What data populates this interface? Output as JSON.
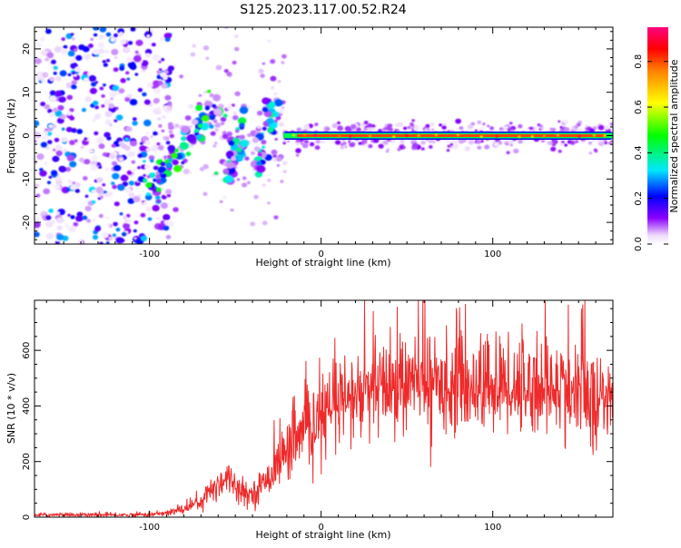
{
  "figure_title": "S125.2023.117.00.52.R24",
  "colors": {
    "snr_line": "#ee2a2a",
    "axis": "#000000",
    "background": "#ffffff"
  },
  "chart_data": [
    {
      "type": "heatmap",
      "title": "S125.2023.117.00.52.R24",
      "xlabel": "Height of straight line (km)",
      "ylabel": "Frequency (Hz)",
      "xlim": [
        -167,
        170
      ],
      "ylim": [
        -25,
        25
      ],
      "xticks": [
        -100,
        0,
        100
      ],
      "yticks": [
        -20,
        -10,
        0,
        10,
        20
      ],
      "grid": false,
      "colormap": "rainbow: white-lavender → violet → blue → cyan → green → yellow → orange → red → magenta",
      "colorbar": {
        "label": "Normalized spectral amplitude",
        "range": [
          0.0,
          0.95
        ],
        "ticks": [
          0.0,
          0.2,
          0.4,
          0.6,
          0.8
        ]
      },
      "features": [
        {
          "name": "noise",
          "x_range": [
            -167,
            -95
          ],
          "y_range": [
            -25,
            25
          ],
          "amplitude": [
            0.02,
            0.3
          ]
        },
        {
          "name": "tilted streak 1",
          "from": [
            -102,
            -13
          ],
          "to": [
            -60,
            7
          ],
          "amplitude_max": 0.45
        },
        {
          "name": "tilted streak 2",
          "from": [
            -56,
            -10
          ],
          "to": [
            -43,
            4
          ],
          "amplitude_max": 0.4
        },
        {
          "name": "tilted streak 3",
          "from": [
            -38,
            -8
          ],
          "to": [
            -28,
            8
          ],
          "amplitude_max": 0.35
        },
        {
          "name": "carrier line",
          "x_range": [
            -22,
            170
          ],
          "frequency": 0,
          "amplitude_max": 0.95
        }
      ]
    },
    {
      "type": "line",
      "xlabel": "Height of straight line (km)",
      "ylabel": "SNR (10 * v/v)",
      "xlim": [
        -167,
        170
      ],
      "ylim": [
        0,
        780
      ],
      "xticks": [
        -100,
        0,
        100
      ],
      "yticks": [
        0,
        200,
        400,
        600
      ],
      "grid": false,
      "series": [
        {
          "x": [
            -167,
            -140,
            -110,
            -100,
            -90,
            -80,
            -70,
            -60,
            -55,
            -50,
            -45,
            -40,
            -35,
            -30,
            -25,
            -20,
            -15,
            -10,
            -5,
            0,
            10,
            20,
            30,
            40,
            50,
            60,
            70,
            80,
            90,
            100,
            110,
            120,
            130,
            140,
            150,
            160,
            170
          ],
          "mean": [
            8,
            8,
            8,
            10,
            14,
            30,
            60,
            120,
            150,
            120,
            85,
            85,
            110,
            150,
            200,
            240,
            270,
            300,
            320,
            360,
            400,
            430,
            450,
            470,
            480,
            480,
            480,
            480,
            470,
            470,
            470,
            470,
            460,
            460,
            440,
            420,
            410
          ],
          "spread": [
            6,
            6,
            7,
            8,
            10,
            18,
            30,
            60,
            60,
            45,
            40,
            40,
            50,
            60,
            80,
            100,
            110,
            120,
            130,
            140,
            150,
            150,
            160,
            160,
            160,
            160,
            160,
            160,
            160,
            160,
            160,
            160,
            160,
            160,
            160,
            160,
            160
          ]
        }
      ]
    }
  ]
}
